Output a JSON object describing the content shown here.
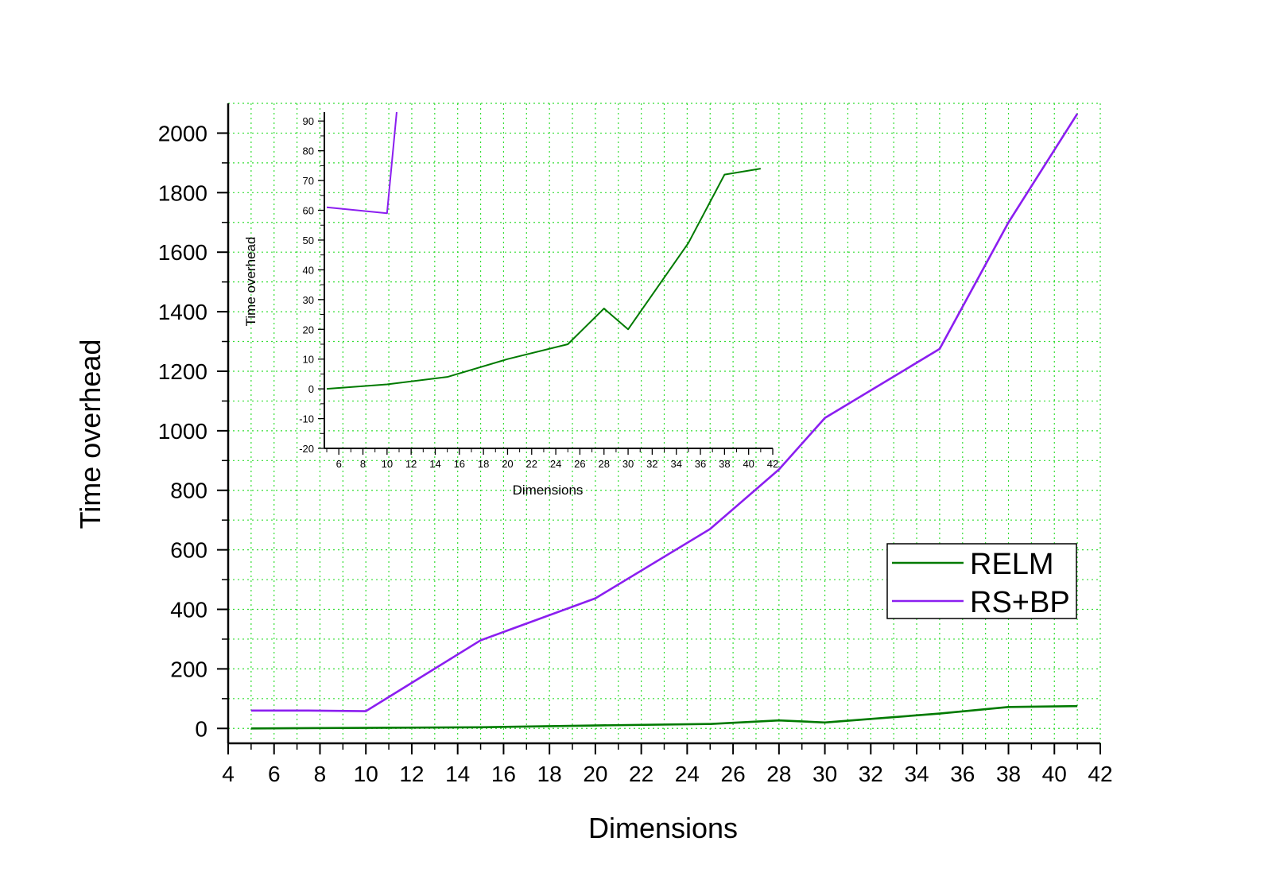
{
  "chart_data": [
    {
      "type": "line",
      "title": "",
      "xlabel": "Dimensions",
      "ylabel": "Time overhead",
      "xlim": [
        4,
        42
      ],
      "ylim": [
        -50,
        2100
      ],
      "xticks": [
        4,
        6,
        8,
        10,
        12,
        14,
        16,
        18,
        20,
        22,
        24,
        26,
        28,
        30,
        32,
        34,
        36,
        38,
        40,
        42
      ],
      "yticks": [
        0,
        200,
        400,
        600,
        800,
        1000,
        1200,
        1400,
        1600,
        1800,
        2000
      ],
      "grid": true,
      "legend": "right",
      "series": [
        {
          "name": "RELM",
          "color": "#007a00",
          "x": [
            5,
            10,
            15,
            20,
            25,
            28,
            30,
            35,
            38,
            41
          ],
          "y": [
            0,
            2,
            4,
            10,
            15,
            27,
            20,
            50,
            72,
            75
          ]
        },
        {
          "name": "RS+BP",
          "color": "#8b1ef0",
          "x": [
            5,
            7.5,
            10,
            15,
            20,
            25,
            28,
            30,
            35,
            38,
            41
          ],
          "y": [
            60,
            60,
            58,
            296,
            437,
            670,
            870,
            1043,
            1275,
            1700,
            2065
          ]
        }
      ]
    },
    {
      "type": "line",
      "title": "",
      "xlabel": "Dimensions",
      "ylabel": "Time overhead",
      "xlim": [
        4.8,
        42
      ],
      "ylim": [
        -20,
        93
      ],
      "xticks": [
        6,
        8,
        10,
        12,
        14,
        16,
        18,
        20,
        22,
        24,
        26,
        28,
        30,
        32,
        34,
        36,
        38,
        40,
        42
      ],
      "yticks": [
        -20,
        -10,
        0,
        10,
        20,
        30,
        40,
        50,
        60,
        70,
        80,
        90
      ],
      "grid": false,
      "series": [
        {
          "name": "RELM",
          "color": "#007a00",
          "x": [
            5,
            10,
            15,
            20,
            25,
            28,
            30,
            35,
            38,
            41
          ],
          "y": [
            0,
            1.5,
            4,
            10,
            15,
            27,
            20,
            49,
            72,
            74
          ]
        },
        {
          "name": "RS+BP",
          "color": "#8b1ef0",
          "x": [
            5,
            10,
            10.8
          ],
          "y": [
            61,
            59,
            93
          ]
        }
      ]
    }
  ]
}
